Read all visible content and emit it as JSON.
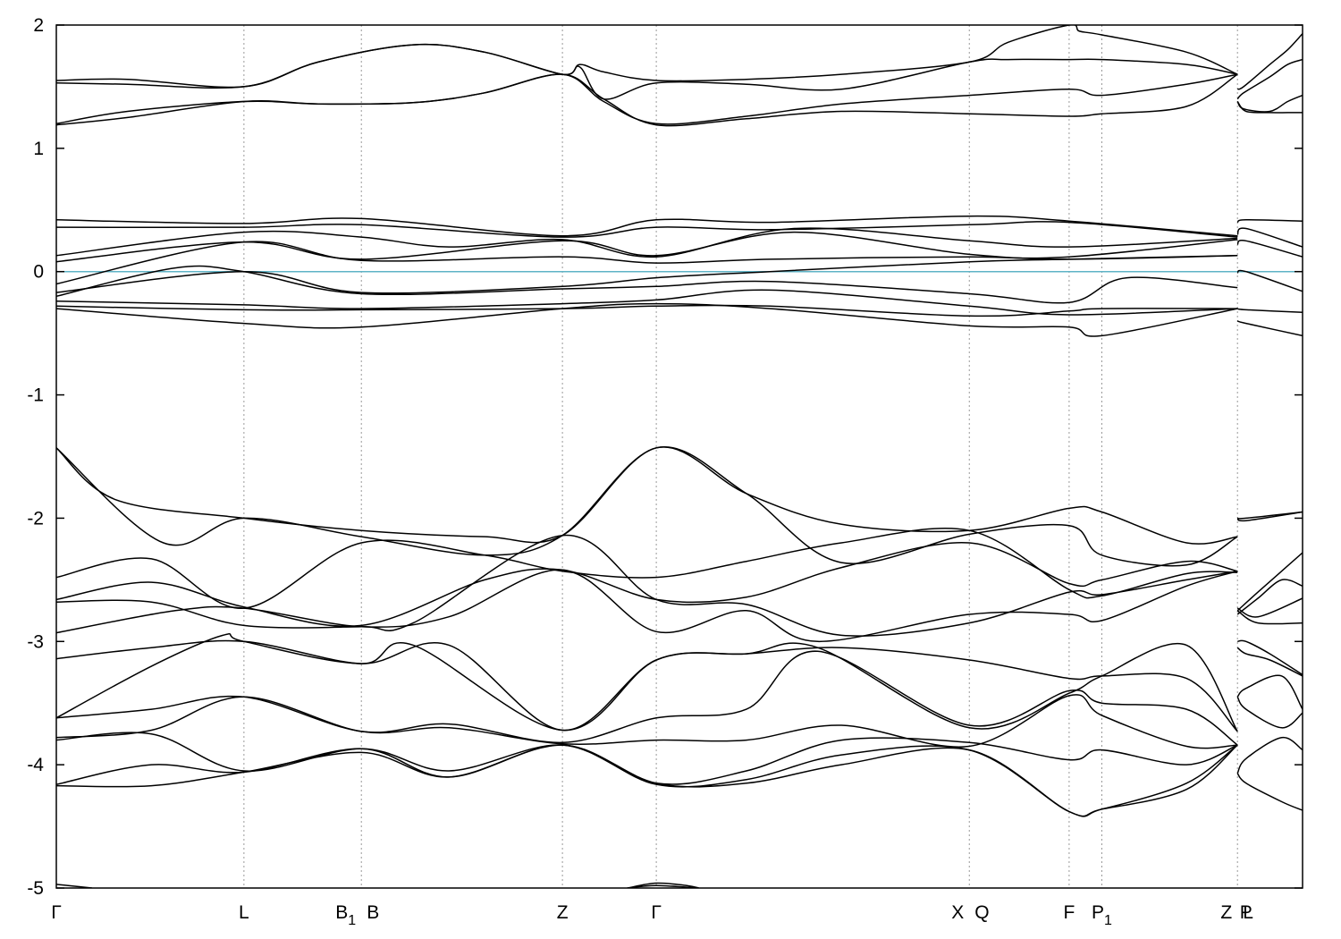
{
  "chart_data": {
    "type": "line",
    "title": "",
    "xlabel": "",
    "ylabel": "",
    "ylim": [
      -5,
      2
    ],
    "yticks": [
      2,
      1,
      0,
      -1,
      -2,
      -3,
      -4,
      -5
    ],
    "ytick_labels": [
      "2",
      "1",
      "0",
      "-1",
      "-2",
      "-3",
      "-4",
      "-5"
    ],
    "xlim": [
      0,
      1
    ],
    "kpoints": [
      {
        "label": "Γ",
        "pos": 0.0,
        "line": false
      },
      {
        "label": "L",
        "pos": 0.1577,
        "line": true
      },
      {
        "label": "B1",
        "sub": "1",
        "base": "B",
        "pos": 0.2564,
        "line": true,
        "anchor": "end"
      },
      {
        "label": "B",
        "pos": 0.2564,
        "line": false,
        "anchor": "start"
      },
      {
        "label": "Z",
        "pos": 0.4254,
        "line": true
      },
      {
        "label": "Γ",
        "pos": 0.5043,
        "line": true
      },
      {
        "label": "X",
        "pos": 0.7674,
        "line": true,
        "anchor": "end"
      },
      {
        "label": "Q",
        "pos": 0.7674,
        "line": false,
        "anchor": "start"
      },
      {
        "label": "F",
        "pos": 0.8513,
        "line": true
      },
      {
        "label": "P1",
        "sub": "1",
        "base": "P",
        "pos": 0.8788,
        "line": true
      },
      {
        "label": "Z",
        "pos": 1.0258,
        "line": true,
        "anchor": "end",
        "xref": 0.9928
      },
      {
        "label": "L",
        "pos": 1.0,
        "line": false,
        "anchor": "start",
        "xref": 0.9928
      },
      {
        "label": "P",
        "pos": 1.0,
        "line": false
      }
    ],
    "fermi_level": 0,
    "fermi_color": "#5fb3c6",
    "grid": "vertical dotted at high-symmetry points",
    "series": [
      {
        "x": [
          0,
          0.06,
          0.1577,
          0.22,
          0.3,
          0.36,
          0.4254,
          0.44,
          0.46,
          0.5043,
          0.58,
          0.66,
          0.7674,
          0.8,
          0.8513,
          0.86,
          0.8788,
          0.95,
          0.9928
        ],
        "y": [
          1.55,
          1.56,
          1.5,
          1.7,
          1.84,
          1.78,
          1.6,
          1.68,
          1.62,
          1.55,
          1.56,
          1.6,
          1.7,
          1.86,
          2.0,
          1.95,
          1.92,
          1.78,
          1.6
        ]
      },
      {
        "x": [
          0,
          0.06,
          0.1577,
          0.22,
          0.3,
          0.36,
          0.4254,
          0.44,
          0.46,
          0.5043,
          0.58,
          0.66,
          0.7674,
          0.8,
          0.8513,
          0.8788,
          0.95,
          0.9928
        ],
        "y": [
          1.53,
          1.52,
          1.5,
          1.7,
          1.84,
          1.78,
          1.6,
          1.66,
          1.4,
          1.53,
          1.52,
          1.48,
          1.7,
          1.72,
          1.72,
          1.72,
          1.68,
          1.6
        ]
      },
      {
        "x": [
          0,
          0.06,
          0.1577,
          0.22,
          0.3,
          0.36,
          0.4254,
          0.46,
          0.5043,
          0.58,
          0.66,
          0.7674,
          0.8513,
          0.8788,
          0.95,
          0.9928
        ],
        "y": [
          1.2,
          1.3,
          1.38,
          1.36,
          1.37,
          1.45,
          1.6,
          1.38,
          1.2,
          1.26,
          1.36,
          1.43,
          1.48,
          1.43,
          1.52,
          1.6
        ]
      },
      {
        "x": [
          0,
          0.06,
          0.1577,
          0.22,
          0.3,
          0.36,
          0.4254,
          0.46,
          0.5043,
          0.58,
          0.66,
          0.7674,
          0.8513,
          0.8788,
          0.95,
          0.9928
        ],
        "y": [
          1.19,
          1.25,
          1.38,
          1.36,
          1.37,
          1.45,
          1.6,
          1.4,
          1.19,
          1.24,
          1.3,
          1.28,
          1.26,
          1.28,
          1.34,
          1.6
        ]
      },
      {
        "x": [
          0.9928,
          0.998,
          1.02,
          1.035,
          1.0475
        ],
        "y": [
          1.48,
          1.5,
          1.68,
          1.8,
          1.93
        ]
      },
      {
        "x": [
          0.9928,
          0.998,
          1.02,
          1.035,
          1.0475
        ],
        "y": [
          1.4,
          1.45,
          1.58,
          1.68,
          1.72
        ]
      },
      {
        "x": [
          0.9928,
          0.998,
          1.02,
          1.035,
          1.0475
        ],
        "y": [
          1.38,
          1.32,
          1.3,
          1.38,
          1.43
        ]
      },
      {
        "x": [
          0.9928,
          1.0,
          1.02,
          1.035,
          1.0475
        ],
        "y": [
          1.38,
          1.3,
          1.29,
          1.29,
          1.29
        ]
      },
      {
        "x": [
          0,
          0.1577,
          0.2564,
          0.4254,
          0.5043,
          0.6,
          0.7674,
          0.8513,
          0.9928
        ],
        "y": [
          0.42,
          0.39,
          0.43,
          0.29,
          0.42,
          0.4,
          0.45,
          0.41,
          0.29
        ]
      },
      {
        "x": [
          0,
          0.1577,
          0.2564,
          0.4254,
          0.5043,
          0.6,
          0.7674,
          0.8513,
          0.9928
        ],
        "y": [
          0.36,
          0.36,
          0.38,
          0.28,
          0.36,
          0.34,
          0.38,
          0.4,
          0.28
        ]
      },
      {
        "x": [
          0,
          0.1577,
          0.2564,
          0.33,
          0.4254,
          0.5043,
          0.62,
          0.7674,
          0.8513,
          0.9928
        ],
        "y": [
          0.13,
          0.32,
          0.28,
          0.2,
          0.26,
          0.12,
          0.35,
          0.25,
          0.2,
          0.27
        ]
      },
      {
        "x": [
          0,
          0.1577,
          0.2564,
          0.4254,
          0.5043,
          0.62,
          0.7674,
          0.8513,
          0.9928
        ],
        "y": [
          0.08,
          0.24,
          0.1,
          0.25,
          0.13,
          0.32,
          0.14,
          0.12,
          0.26
        ]
      },
      {
        "x": [
          0,
          0.1577,
          0.2564,
          0.4254,
          0.5043,
          0.6,
          0.7674,
          0.8513,
          0.9928
        ],
        "y": [
          -0.1,
          0.24,
          0.09,
          0.12,
          0.07,
          0.1,
          0.12,
          0.1,
          0.13
        ]
      },
      {
        "x": [
          0,
          0.1577,
          0.2564,
          0.4254,
          0.5043,
          0.6,
          0.7674,
          0.8513,
          0.9928
        ],
        "y": [
          -0.17,
          0.0,
          -0.17,
          -0.12,
          -0.05,
          0.0,
          0.08,
          0.1,
          0.13
        ]
      },
      {
        "x": [
          0,
          0.1,
          0.1577,
          0.2564,
          0.4254,
          0.5043,
          0.6,
          0.7674,
          0.8513,
          0.9,
          0.9928
        ],
        "y": [
          -0.2,
          0.03,
          0.0,
          -0.18,
          -0.14,
          -0.12,
          -0.08,
          -0.18,
          -0.25,
          -0.05,
          -0.13
        ]
      },
      {
        "x": [
          0,
          0.1577,
          0.2564,
          0.4254,
          0.5043,
          0.6,
          0.7674,
          0.8513,
          0.9928
        ],
        "y": [
          -0.24,
          -0.27,
          -0.3,
          -0.26,
          -0.23,
          -0.15,
          -0.28,
          -0.35,
          -0.3
        ]
      },
      {
        "x": [
          0,
          0.1577,
          0.2564,
          0.4254,
          0.5043,
          0.6,
          0.7674,
          0.8513,
          0.8788,
          0.9928
        ],
        "y": [
          -0.28,
          -0.31,
          -0.31,
          -0.3,
          -0.28,
          -0.28,
          -0.36,
          -0.32,
          -0.3,
          -0.3
        ]
      },
      {
        "x": [
          0,
          0.1577,
          0.2564,
          0.4254,
          0.5043,
          0.6,
          0.7674,
          0.8513,
          0.8788,
          0.9928
        ],
        "y": [
          -0.3,
          -0.42,
          -0.45,
          -0.3,
          -0.26,
          -0.3,
          -0.44,
          -0.45,
          -0.52,
          -0.3
        ]
      },
      {
        "x": [
          0.9928,
          1.0,
          1.0475
        ],
        "y": [
          0.4,
          0.42,
          0.41
        ]
      },
      {
        "x": [
          0.9928,
          1.0,
          1.0475
        ],
        "y": [
          0.3,
          0.35,
          0.2
        ]
      },
      {
        "x": [
          0.9928,
          1.0,
          1.0475
        ],
        "y": [
          0.22,
          0.25,
          0.12
        ]
      },
      {
        "x": [
          0.9928,
          1.0,
          1.0475
        ],
        "y": [
          -0.01,
          0.0,
          -0.16
        ]
      },
      {
        "x": [
          0.9928,
          1.0,
          1.0475
        ],
        "y": [
          -0.3,
          -0.31,
          -0.33
        ]
      },
      {
        "x": [
          0.9928,
          1.0,
          1.0475
        ],
        "y": [
          -0.4,
          -0.42,
          -0.52
        ]
      },
      {
        "x": [
          0,
          0.05,
          0.1577,
          0.2564,
          0.36,
          0.4254,
          0.5043,
          0.58,
          0.66,
          0.7674,
          0.8513,
          0.8788,
          0.95,
          0.9928
        ],
        "y": [
          -1.43,
          -1.85,
          -2.0,
          -2.1,
          -2.15,
          -2.14,
          -1.43,
          -1.8,
          -2.05,
          -2.1,
          -1.92,
          -1.95,
          -2.2,
          -2.15
        ]
      },
      {
        "x": [
          0,
          0.09,
          0.1577,
          0.2564,
          0.36,
          0.4254,
          0.5043,
          0.58,
          0.66,
          0.7674,
          0.8513,
          0.8788,
          0.95,
          0.9928
        ],
        "y": [
          -1.43,
          -2.2,
          -2.0,
          -2.15,
          -2.3,
          -2.14,
          -1.43,
          -1.8,
          -2.36,
          -2.13,
          -2.06,
          -2.3,
          -2.38,
          -2.15
        ]
      },
      {
        "x": [
          0,
          0.08,
          0.1577,
          0.2564,
          0.36,
          0.4254,
          0.5043,
          0.58,
          0.66,
          0.7674,
          0.8513,
          0.8788,
          0.95,
          0.9928
        ],
        "y": [
          -2.48,
          -2.33,
          -2.73,
          -2.2,
          -2.3,
          -2.43,
          -2.48,
          -2.35,
          -2.2,
          -2.1,
          -2.58,
          -2.63,
          -2.45,
          -2.44
        ]
      },
      {
        "x": [
          0,
          0.08,
          0.1577,
          0.2564,
          0.36,
          0.4254,
          0.5043,
          0.58,
          0.66,
          0.7674,
          0.8513,
          0.8788,
          0.95,
          0.9928
        ],
        "y": [
          -2.66,
          -2.52,
          -2.72,
          -2.87,
          -2.5,
          -2.42,
          -2.66,
          -2.64,
          -2.4,
          -2.2,
          -2.53,
          -2.5,
          -2.35,
          -2.43
        ]
      },
      {
        "x": [
          0,
          0.08,
          0.1577,
          0.2564,
          0.3,
          0.4254,
          0.5043,
          0.58,
          0.66,
          0.7674,
          0.8513,
          0.8788,
          0.95,
          0.9928
        ],
        "y": [
          -2.68,
          -2.68,
          -2.87,
          -2.88,
          -2.85,
          -2.14,
          -2.66,
          -2.7,
          -2.95,
          -2.85,
          -2.6,
          -2.62,
          -2.5,
          -2.43
        ]
      },
      {
        "x": [
          0,
          0.1,
          0.1577,
          0.2564,
          0.33,
          0.4254,
          0.5043,
          0.58,
          0.64,
          0.7674,
          0.8513,
          0.8788,
          0.95,
          0.9928
        ],
        "y": [
          -2.93,
          -2.75,
          -2.73,
          -2.88,
          -2.8,
          -2.42,
          -2.92,
          -2.75,
          -3.0,
          -2.78,
          -2.78,
          -2.83,
          -2.55,
          -2.43
        ]
      },
      {
        "x": [
          0,
          0.08,
          0.1577,
          0.2564,
          0.3,
          0.4254,
          0.5043,
          0.58,
          0.66,
          0.7674,
          0.8513,
          0.8788,
          0.95,
          0.9928
        ],
        "y": [
          -3.14,
          -3.05,
          -3.0,
          -3.18,
          -3.03,
          -3.72,
          -3.15,
          -3.1,
          -3.05,
          -3.15,
          -3.3,
          -3.28,
          -3.3,
          -3.73
        ]
      },
      {
        "x": [
          0,
          0.08,
          0.14,
          0.1577,
          0.2564,
          0.33,
          0.4254,
          0.5043,
          0.58,
          0.64,
          0.7674,
          0.8513,
          0.8788,
          0.95,
          0.9928
        ],
        "y": [
          -3.62,
          -3.2,
          -2.95,
          -3.0,
          -3.18,
          -3.03,
          -3.72,
          -3.15,
          -3.1,
          -3.05,
          -3.7,
          -3.42,
          -3.28,
          -3.03,
          -3.73
        ]
      },
      {
        "x": [
          0,
          0.08,
          0.1577,
          0.2564,
          0.33,
          0.4254,
          0.5043,
          0.58,
          0.64,
          0.7674,
          0.8513,
          0.8788,
          0.95,
          0.9928
        ],
        "y": [
          -3.62,
          -3.55,
          -3.45,
          -3.73,
          -3.67,
          -3.82,
          -3.62,
          -3.55,
          -3.08,
          -3.68,
          -3.4,
          -3.5,
          -3.55,
          -3.84
        ]
      },
      {
        "x": [
          0,
          0.08,
          0.1577,
          0.2564,
          0.33,
          0.4254,
          0.5043,
          0.58,
          0.66,
          0.7674,
          0.8513,
          0.8788,
          0.95,
          0.9928
        ],
        "y": [
          -3.78,
          -3.72,
          -3.45,
          -3.73,
          -3.7,
          -3.83,
          -3.8,
          -3.8,
          -3.68,
          -3.85,
          -3.44,
          -3.6,
          -3.85,
          -3.84
        ]
      },
      {
        "x": [
          0,
          0.08,
          0.1577,
          0.2564,
          0.33,
          0.4254,
          0.5043,
          0.58,
          0.66,
          0.7674,
          0.8513,
          0.8788,
          0.95,
          0.9928
        ],
        "y": [
          -3.8,
          -3.75,
          -4.05,
          -3.87,
          -4.05,
          -3.84,
          -4.15,
          -4.05,
          -3.8,
          -3.82,
          -3.96,
          -3.88,
          -4.0,
          -3.84
        ]
      },
      {
        "x": [
          0,
          0.08,
          0.1577,
          0.2564,
          0.33,
          0.4254,
          0.5043,
          0.58,
          0.66,
          0.7674,
          0.8513,
          0.8788,
          0.95,
          0.9928
        ],
        "y": [
          -4.16,
          -4.0,
          -4.06,
          -3.87,
          -4.1,
          -3.84,
          -4.15,
          -4.15,
          -4.0,
          -3.88,
          -4.38,
          -4.36,
          -4.15,
          -3.84
        ]
      },
      {
        "x": [
          0,
          0.08,
          0.1577,
          0.2564,
          0.33,
          0.4254,
          0.5043,
          0.58,
          0.66,
          0.7674,
          0.8513,
          0.8788,
          0.95,
          0.9928
        ],
        "y": [
          -4.17,
          -4.17,
          -4.06,
          -3.9,
          -4.1,
          -3.84,
          -4.16,
          -4.12,
          -3.92,
          -3.88,
          -4.38,
          -4.36,
          -4.2,
          -3.84
        ]
      },
      {
        "x": [
          0.9928,
          1.0,
          1.0475
        ],
        "y": [
          -2.0,
          -2.02,
          -1.95
        ]
      },
      {
        "x": [
          0.9928,
          1.0,
          1.0475
        ],
        "y": [
          -2.0,
          -2.0,
          -1.95
        ]
      },
      {
        "x": [
          0.9928,
          1.01,
          1.0475
        ],
        "y": [
          -2.75,
          -2.6,
          -2.28
        ]
      },
      {
        "x": [
          0.9928,
          1.01,
          1.03,
          1.0475
        ],
        "y": [
          -2.78,
          -2.65,
          -2.5,
          -2.55
        ]
      },
      {
        "x": [
          0.9928,
          1.01,
          1.0475
        ],
        "y": [
          -2.75,
          -2.85,
          -2.85
        ]
      },
      {
        "x": [
          0.9928,
          1.01,
          1.0475
        ],
        "y": [
          -2.73,
          -2.8,
          -2.65
        ]
      },
      {
        "x": [
          0.9928,
          1.0,
          1.02,
          1.0475
        ],
        "y": [
          -3.0,
          -3.0,
          -3.1,
          -3.27
        ]
      },
      {
        "x": [
          0.9928,
          1.0,
          1.02,
          1.0475
        ],
        "y": [
          -3.05,
          -3.1,
          -3.15,
          -3.28
        ]
      },
      {
        "x": [
          0.9928,
          1.0,
          1.03,
          1.0475
        ],
        "y": [
          -3.45,
          -3.38,
          -3.28,
          -3.55
        ]
      },
      {
        "x": [
          0.9928,
          1.0,
          1.03,
          1.0475
        ],
        "y": [
          -3.45,
          -3.55,
          -3.7,
          -3.58
        ]
      },
      {
        "x": [
          0.9928,
          1.0,
          1.03,
          1.0475
        ],
        "y": [
          -4.07,
          -3.95,
          -3.78,
          -3.88
        ]
      },
      {
        "x": [
          0.9928,
          1.0,
          1.03,
          1.0475
        ],
        "y": [
          -4.07,
          -4.15,
          -4.3,
          -4.37
        ]
      },
      {
        "x": [
          0,
          0.01,
          0.03
        ],
        "y": [
          -4.97,
          -4.98,
          -5.0
        ]
      },
      {
        "x": [
          0.48,
          0.5043,
          0.53,
          0.54
        ],
        "y": [
          -5.0,
          -4.96,
          -4.98,
          -5.0
        ]
      },
      {
        "x": [
          0.48,
          0.5043,
          0.54
        ],
        "y": [
          -5.0,
          -4.98,
          -5.0
        ]
      }
    ]
  }
}
